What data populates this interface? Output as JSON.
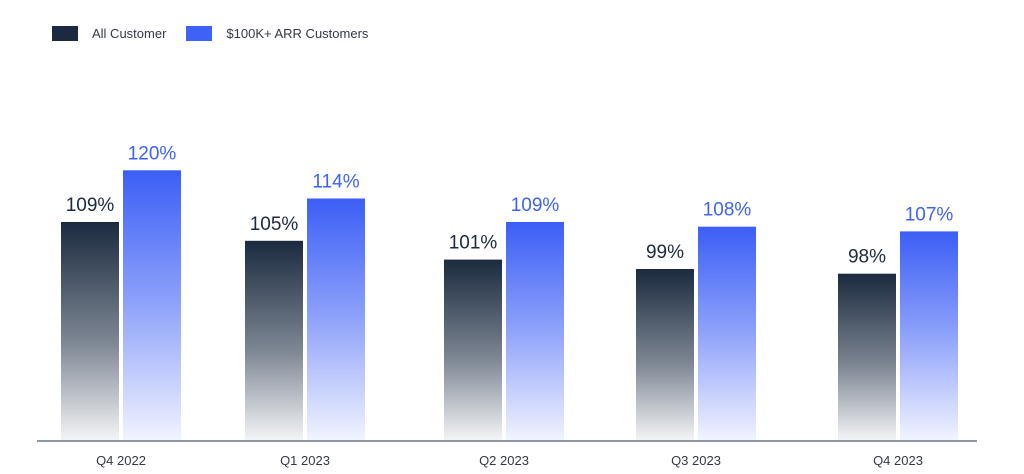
{
  "chart_data": {
    "type": "bar",
    "title": "",
    "xlabel": "",
    "ylabel": "",
    "categories": [
      "Q4 2022",
      "Q1 2023",
      "Q2 2023",
      "Q3 2023",
      "Q4 2023"
    ],
    "series": [
      {
        "name": "All Customer",
        "values": [
          109,
          105,
          101,
          99,
          98
        ],
        "labels": [
          "109%",
          "105%",
          "101%",
          "99%",
          "98%"
        ],
        "color": "#1b2a3f"
      },
      {
        "name": "$100K+ ARR Customers",
        "values": [
          120,
          114,
          109,
          108,
          107
        ],
        "labels": [
          "120%",
          "114%",
          "109%",
          "108%",
          "107%"
        ],
        "color": "#3d62f5"
      }
    ],
    "ylim": [
      0,
      130
    ],
    "grid": false,
    "legend": "top-left"
  },
  "colors": {
    "axis": "#4a5a6e",
    "tick_label": "#333a45",
    "dark_label": "#1b2a3f",
    "blue_label": "#3d62f5"
  }
}
